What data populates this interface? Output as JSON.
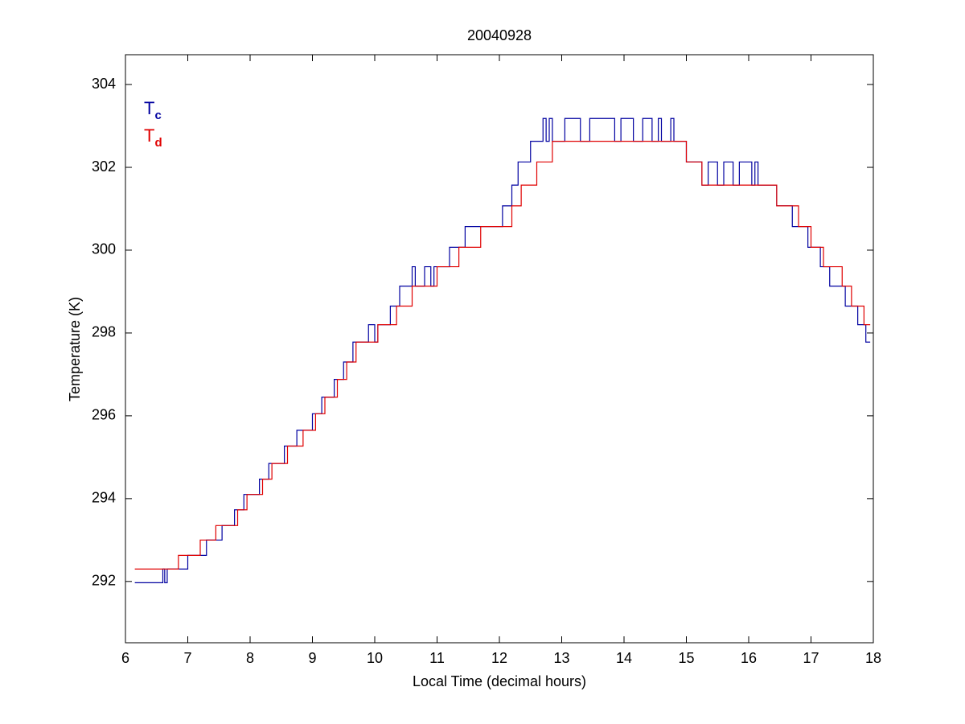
{
  "chart_data": {
    "type": "line",
    "title": "20040928",
    "x_label": "Local Time (decimal hours)",
    "y_label": "Temperature (K)",
    "xlim": [
      6,
      18
    ],
    "xticks": [
      6,
      7,
      8,
      9,
      10,
      11,
      12,
      13,
      14,
      15,
      16,
      17,
      18
    ],
    "ylim": [
      290.52,
      304.72
    ],
    "yticks": [
      292,
      294,
      296,
      298,
      300,
      302,
      304
    ],
    "legend": "top-left",
    "series": [
      {
        "name": "T",
        "subscript": "c",
        "color": "#0000a0",
        "x": [
          6.15,
          6.6,
          6.6,
          6.63,
          6.63,
          6.67,
          6.67,
          7.0,
          7.0,
          7.3,
          7.3,
          7.55,
          7.55,
          7.75,
          7.75,
          7.9,
          7.9,
          8.15,
          8.15,
          8.3,
          8.3,
          8.55,
          8.55,
          8.75,
          8.75,
          9.0,
          9.0,
          9.15,
          9.15,
          9.35,
          9.35,
          9.5,
          9.5,
          9.65,
          9.65,
          9.9,
          9.9,
          10.0,
          10.0,
          10.05,
          10.05,
          10.25,
          10.25,
          10.4,
          10.4,
          10.6,
          10.6,
          10.65,
          10.65,
          10.8,
          10.8,
          10.9,
          10.9,
          10.95,
          10.95,
          11.2,
          11.2,
          11.45,
          11.45,
          12.05,
          12.05,
          12.2,
          12.2,
          12.3,
          12.3,
          12.5,
          12.5,
          12.7,
          12.7,
          12.75,
          12.75,
          12.8,
          12.8,
          12.85,
          12.85,
          13.05,
          13.05,
          13.3,
          13.3,
          13.45,
          13.45,
          13.85,
          13.85,
          13.95,
          13.95,
          14.15,
          14.15,
          14.3,
          14.3,
          14.45,
          14.45,
          14.55,
          14.55,
          14.6,
          14.6,
          14.75,
          14.75,
          14.8,
          14.8,
          15.0,
          15.0,
          15.25,
          15.25,
          15.35,
          15.35,
          15.5,
          15.5,
          15.6,
          15.6,
          15.75,
          15.75,
          15.85,
          15.85,
          16.05,
          16.05,
          16.1,
          16.1,
          16.15,
          16.15,
          16.45,
          16.45,
          16.7,
          16.7,
          16.95,
          16.95,
          17.15,
          17.15,
          17.3,
          17.3,
          17.55,
          17.55,
          17.75,
          17.75,
          17.88,
          17.88,
          17.95
        ],
        "values": [
          291.97,
          291.97,
          292.3,
          292.3,
          291.97,
          291.97,
          292.3,
          292.3,
          292.63,
          292.63,
          293.0,
          293.0,
          293.35,
          293.35,
          293.73,
          293.73,
          294.1,
          294.1,
          294.47,
          294.47,
          294.85,
          294.85,
          295.27,
          295.27,
          295.65,
          295.65,
          296.05,
          296.05,
          296.45,
          296.45,
          296.88,
          296.88,
          297.3,
          297.3,
          297.78,
          297.78,
          298.2,
          298.2,
          297.78,
          297.78,
          298.2,
          298.2,
          298.65,
          298.65,
          299.13,
          299.13,
          299.6,
          299.6,
          299.13,
          299.13,
          299.6,
          299.6,
          299.13,
          299.13,
          299.6,
          299.6,
          300.07,
          300.07,
          300.57,
          300.57,
          301.07,
          301.07,
          301.57,
          301.57,
          302.13,
          302.13,
          302.63,
          302.63,
          303.18,
          303.18,
          302.63,
          302.63,
          303.18,
          303.18,
          302.63,
          302.63,
          303.18,
          303.18,
          302.63,
          302.63,
          303.18,
          303.18,
          302.63,
          302.63,
          303.18,
          303.18,
          302.63,
          302.63,
          303.18,
          303.18,
          302.63,
          302.63,
          303.18,
          303.18,
          302.63,
          302.63,
          303.18,
          303.18,
          302.63,
          302.63,
          302.13,
          302.13,
          301.57,
          301.57,
          302.13,
          302.13,
          301.57,
          301.57,
          302.13,
          302.13,
          301.57,
          301.57,
          302.13,
          302.13,
          301.57,
          301.57,
          302.13,
          302.13,
          301.57,
          301.57,
          301.07,
          301.07,
          300.57,
          300.57,
          300.07,
          300.07,
          299.6,
          299.6,
          299.13,
          299.13,
          298.65,
          298.65,
          298.2,
          298.2,
          297.78,
          297.78
        ]
      },
      {
        "name": "T",
        "subscript": "d",
        "color": "#e00000",
        "x": [
          6.15,
          6.85,
          6.85,
          7.2,
          7.2,
          7.45,
          7.45,
          7.8,
          7.8,
          7.95,
          7.95,
          8.2,
          8.2,
          8.35,
          8.35,
          8.6,
          8.6,
          8.85,
          8.85,
          9.05,
          9.05,
          9.2,
          9.2,
          9.4,
          9.4,
          9.55,
          9.55,
          9.7,
          9.7,
          10.05,
          10.05,
          10.35,
          10.35,
          10.6,
          10.6,
          11.0,
          11.0,
          11.35,
          11.35,
          11.7,
          11.7,
          12.2,
          12.2,
          12.35,
          12.35,
          12.6,
          12.6,
          12.85,
          12.85,
          15.0,
          15.0,
          15.25,
          15.25,
          16.45,
          16.45,
          16.8,
          16.8,
          17.0,
          17.0,
          17.2,
          17.2,
          17.5,
          17.5,
          17.65,
          17.65,
          17.85,
          17.85,
          17.95
        ],
        "values": [
          292.3,
          292.3,
          292.63,
          292.63,
          293.0,
          293.0,
          293.35,
          293.35,
          293.73,
          293.73,
          294.1,
          294.1,
          294.47,
          294.47,
          294.85,
          294.85,
          295.27,
          295.27,
          295.65,
          295.65,
          296.05,
          296.05,
          296.45,
          296.45,
          296.88,
          296.88,
          297.3,
          297.3,
          297.78,
          297.78,
          298.2,
          298.2,
          298.65,
          298.65,
          299.13,
          299.13,
          299.6,
          299.6,
          300.07,
          300.07,
          300.57,
          300.57,
          301.07,
          301.07,
          301.57,
          301.57,
          302.13,
          302.13,
          302.63,
          302.63,
          302.13,
          302.13,
          301.57,
          301.57,
          301.07,
          301.07,
          300.57,
          300.57,
          300.07,
          300.07,
          299.6,
          299.6,
          299.13,
          299.13,
          298.65,
          298.65,
          298.2,
          298.2
        ]
      }
    ]
  }
}
